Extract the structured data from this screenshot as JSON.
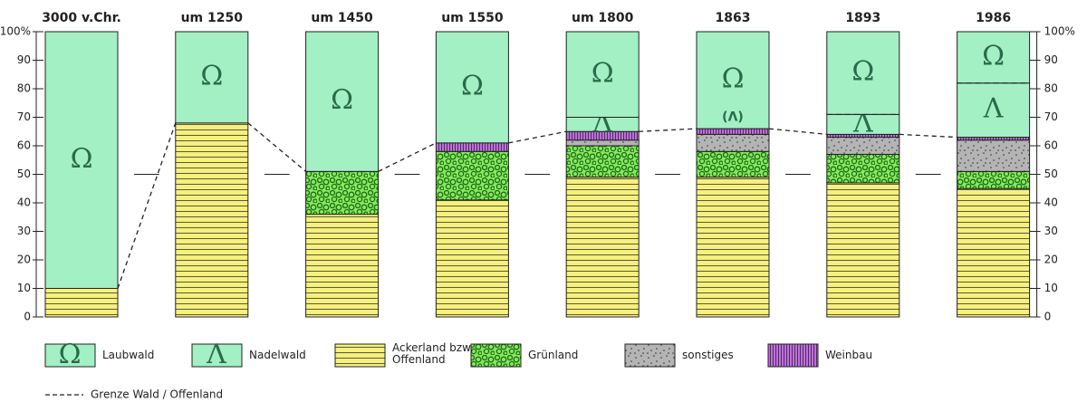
{
  "chart_data": {
    "type": "stacked-bar",
    "categories": [
      "3000 v.Chr.",
      "um 1250",
      "um 1450",
      "um 1550",
      "um 1800",
      "1863",
      "1893",
      "1986"
    ],
    "series": [
      {
        "name": "Laubwald",
        "symbol": "Ω",
        "color": "#a2f0c4",
        "hatch": "none",
        "values": [
          90,
          32,
          49,
          39,
          30,
          34,
          29,
          18
        ]
      },
      {
        "name": "Nadelwald",
        "symbol": "Λ",
        "color": "#a2f0c4",
        "hatch": "none",
        "values": [
          null,
          null,
          null,
          null,
          5,
          null,
          7,
          19
        ]
      },
      {
        "name": "Ackerland bzw. Offenland",
        "color": "#f6f07c",
        "hatch": "horizontal-lines",
        "values": [
          10,
          68,
          36,
          41,
          49,
          49,
          47,
          45
        ]
      },
      {
        "name": "Grünland",
        "color": "#86ea5c",
        "hatch": "blobs",
        "values": [
          null,
          null,
          15,
          17,
          11,
          9,
          10,
          6
        ]
      },
      {
        "name": "sonstiges",
        "color": "#b4b4b4",
        "hatch": "dots",
        "values": [
          null,
          null,
          null,
          null,
          2,
          6,
          6,
          11
        ]
      },
      {
        "name": "Weinbau",
        "color": "#c46ae6",
        "hatch": "vertical-lines",
        "values": [
          null,
          null,
          null,
          3,
          3,
          2,
          1,
          1
        ]
      }
    ],
    "annotations": [
      {
        "text": "(Λ)",
        "x": "1863",
        "y": 70
      }
    ],
    "border_line_label": "Grenze Wald / Offenland",
    "ylim": [
      0,
      100
    ],
    "yticks": [
      0,
      10,
      20,
      30,
      40,
      50,
      60,
      70,
      80,
      90,
      {
        "value": 100,
        "label": "100%"
      }
    ]
  }
}
